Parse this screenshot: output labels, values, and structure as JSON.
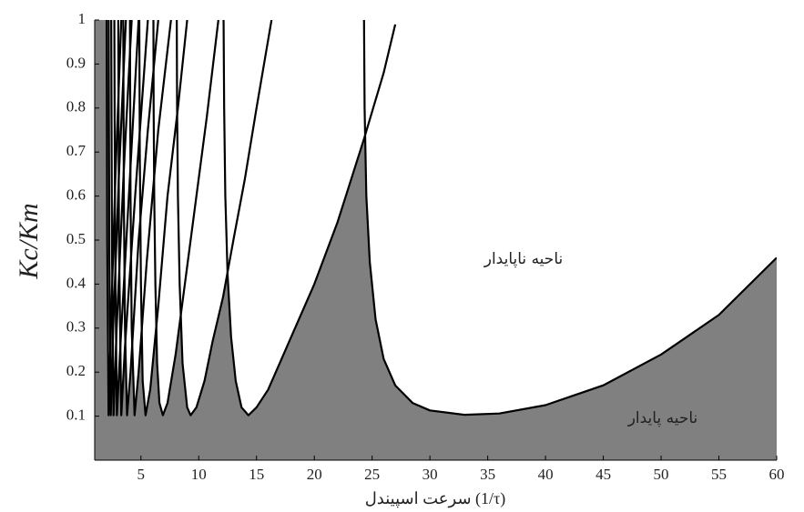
{
  "chart_data": {
    "type": "line",
    "xlabel": "سرعت اسپیندل (1/τ)",
    "ylabel": "Kc/Km",
    "annotations": [
      "ناحیه ناپایدار",
      "ناحیه پایدار"
    ],
    "xlim": [
      1,
      60
    ],
    "ylim": [
      0,
      1
    ],
    "xticks": [
      5,
      10,
      15,
      20,
      25,
      30,
      35,
      40,
      45,
      50,
      55,
      60
    ],
    "yticks": [
      0.1,
      0.2,
      0.3,
      0.4,
      0.5,
      0.6,
      0.7,
      0.8,
      0.9,
      1
    ],
    "stable_color": "#808080",
    "series": [
      {
        "color": "#000000",
        "x": [
          24.3,
          24.35,
          24.5,
          24.8,
          25.3,
          26,
          27,
          28.5,
          30,
          33,
          36,
          40,
          45,
          50,
          55,
          60
        ],
        "values": [
          1.0,
          0.8,
          0.6,
          0.45,
          0.32,
          0.23,
          0.17,
          0.13,
          0.113,
          0.103,
          0.106,
          0.125,
          0.17,
          0.24,
          0.33,
          0.46
        ]
      },
      {
        "color": "#000000",
        "x": [
          12.15,
          12.2,
          12.3,
          12.5,
          12.8,
          13.2,
          13.7,
          14.3,
          15,
          16,
          17,
          18,
          20,
          22,
          24.3,
          26,
          27
        ],
        "values": [
          1.0,
          0.8,
          0.6,
          0.42,
          0.28,
          0.18,
          0.12,
          0.102,
          0.12,
          0.16,
          0.22,
          0.28,
          0.4,
          0.54,
          0.73,
          0.88,
          0.99
        ]
      },
      {
        "color": "#000000",
        "x": [
          8.1,
          8.13,
          8.2,
          8.35,
          8.6,
          9,
          9.3,
          9.8,
          10.5,
          11.2,
          12.1,
          13,
          14,
          15,
          16.3
        ],
        "values": [
          1.0,
          0.8,
          0.6,
          0.4,
          0.22,
          0.12,
          0.102,
          0.12,
          0.18,
          0.27,
          0.37,
          0.5,
          0.64,
          0.8,
          1.0
        ]
      },
      {
        "color": "#000000",
        "x": [
          6.08,
          6.1,
          6.15,
          6.25,
          6.4,
          6.6,
          6.9,
          7.3,
          8.0,
          8.8,
          9.7,
          10.7,
          11.7
        ],
        "values": [
          1.0,
          0.8,
          0.6,
          0.4,
          0.22,
          0.13,
          0.102,
          0.13,
          0.24,
          0.4,
          0.58,
          0.78,
          1.0
        ]
      },
      {
        "color": "#000000",
        "x": [
          4.86,
          4.9,
          5,
          5.15,
          5.4,
          5.8,
          6.5,
          7.3,
          8.2,
          9
        ],
        "values": [
          1.0,
          0.7,
          0.4,
          0.18,
          0.102,
          0.16,
          0.35,
          0.6,
          0.8,
          1.0
        ]
      },
      {
        "color": "#000000",
        "x": [
          4.05,
          4.1,
          4.2,
          4.45,
          4.8,
          5.5,
          6.5,
          7.6
        ],
        "values": [
          1.0,
          0.6,
          0.3,
          0.102,
          0.2,
          0.45,
          0.75,
          1.0
        ]
      },
      {
        "color": "#000000",
        "x": [
          3.47,
          3.52,
          3.62,
          3.8,
          4.1,
          4.8,
          5.6,
          6.5
        ],
        "values": [
          1.0,
          0.6,
          0.3,
          0.102,
          0.2,
          0.5,
          0.75,
          1.0
        ]
      },
      {
        "color": "#000000",
        "x": [
          3.04,
          3.1,
          3.3,
          3.6,
          4.5,
          5.6
        ],
        "values": [
          1.0,
          0.5,
          0.102,
          0.25,
          0.6,
          1.0
        ]
      },
      {
        "color": "#000000",
        "x": [
          2.7,
          2.76,
          2.92,
          3.2,
          4,
          4.8
        ],
        "values": [
          1.0,
          0.5,
          0.102,
          0.25,
          0.62,
          1.0
        ]
      },
      {
        "color": "#000000",
        "x": [
          2.43,
          2.49,
          2.63,
          2.9,
          3.5,
          4.2
        ],
        "values": [
          1.0,
          0.5,
          0.102,
          0.3,
          0.65,
          1.0
        ]
      },
      {
        "color": "#000000",
        "x": [
          2.21,
          2.26,
          2.39,
          2.6,
          3.1,
          3.7
        ],
        "values": [
          1.0,
          0.5,
          0.102,
          0.3,
          0.65,
          1.0
        ]
      },
      {
        "color": "#000000",
        "x": [
          2.03,
          2.08,
          2.2,
          2.4,
          2.8,
          3.3
        ],
        "values": [
          1.0,
          0.5,
          0.102,
          0.3,
          0.65,
          1.0
        ]
      }
    ]
  }
}
